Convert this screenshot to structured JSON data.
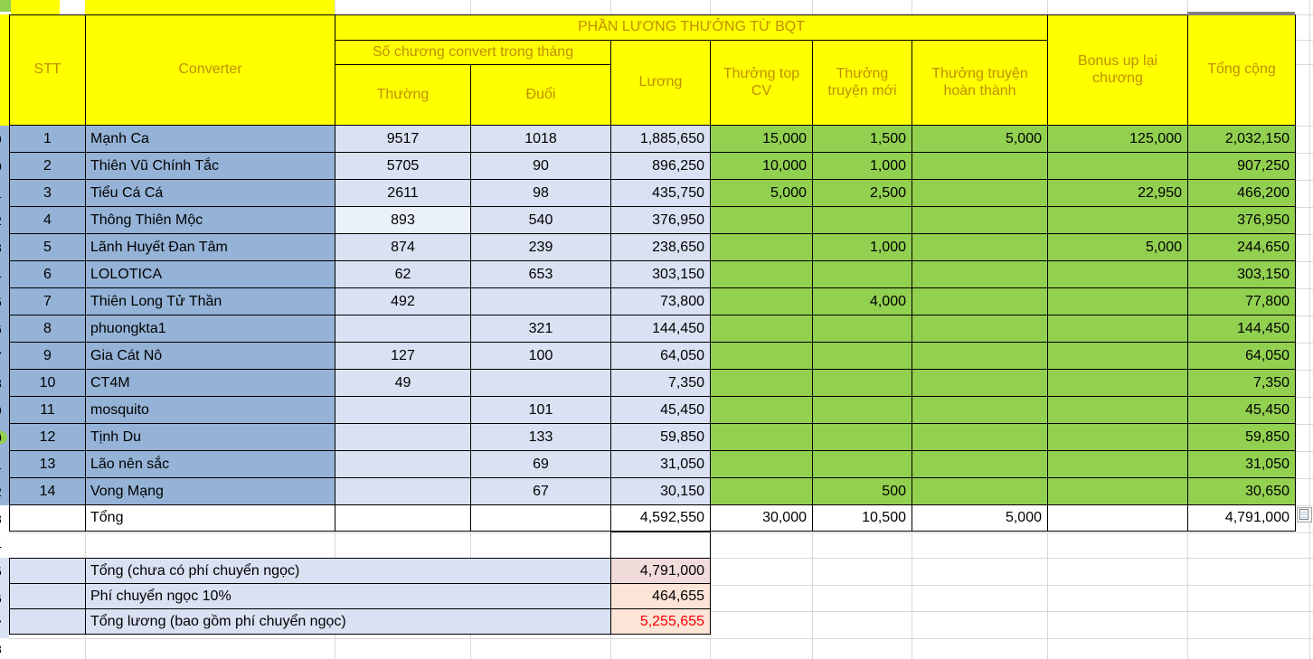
{
  "title": "PHẦN LƯƠNG THƯỞNG TỪ BQT",
  "headers": {
    "stt": "STT",
    "converter": "Converter",
    "chapters_group": "Số chương convert trong tháng",
    "thuong": "Thường",
    "duoi": "Đuổi",
    "luong": "Lương",
    "top_cv": "Thưởng top CV",
    "truyen_moi": "Thưởng truyện mới",
    "hoan_thanh": "Thưởng truyện hoàn thành",
    "bonus_up": "Bonus up lại chương",
    "tong_cong": "Tổng cộng"
  },
  "rows": [
    {
      "stt": "1",
      "converter": "Mạnh Ca",
      "thuong": "9517",
      "duoi": "1018",
      "luong": "1,885,650",
      "top_cv": "15,000",
      "truyen_moi": "1,500",
      "hoan_thanh": "5,000",
      "bonus_up": "125,000",
      "tong_cong": "2,032,150"
    },
    {
      "stt": "2",
      "converter": "Thiên Vũ Chính Tắc",
      "thuong": "5705",
      "duoi": "90",
      "luong": "896,250",
      "top_cv": "10,000",
      "truyen_moi": "1,000",
      "hoan_thanh": "",
      "bonus_up": "",
      "tong_cong": "907,250"
    },
    {
      "stt": "3",
      "converter": "Tiểu Cá Cá",
      "thuong": "2611",
      "duoi": "98",
      "luong": "435,750",
      "top_cv": "5,000",
      "truyen_moi": "2,500",
      "hoan_thanh": "",
      "bonus_up": "22,950",
      "tong_cong": "466,200"
    },
    {
      "stt": "4",
      "converter": "Thông Thiên Mộc",
      "thuong": "893",
      "duoi": "540",
      "luong": "376,950",
      "top_cv": "",
      "truyen_moi": "",
      "hoan_thanh": "",
      "bonus_up": "",
      "tong_cong": "376,950",
      "thuong_variant": true
    },
    {
      "stt": "5",
      "converter": "Lãnh Huyết Đan Tâm",
      "thuong": "874",
      "duoi": "239",
      "luong": "238,650",
      "top_cv": "",
      "truyen_moi": "1,000",
      "hoan_thanh": "",
      "bonus_up": "5,000",
      "tong_cong": "244,650"
    },
    {
      "stt": "6",
      "converter": "LOLOTICA",
      "thuong": "62",
      "duoi": "653",
      "luong": "303,150",
      "top_cv": "",
      "truyen_moi": "",
      "hoan_thanh": "",
      "bonus_up": "",
      "tong_cong": "303,150"
    },
    {
      "stt": "7",
      "converter": "Thiên Long Tử Thần",
      "thuong": "492",
      "duoi": "",
      "luong": "73,800",
      "top_cv": "",
      "truyen_moi": "4,000",
      "hoan_thanh": "",
      "bonus_up": "",
      "tong_cong": "77,800"
    },
    {
      "stt": "8",
      "converter": "phuongkta1",
      "thuong": "",
      "duoi": "321",
      "luong": "144,450",
      "top_cv": "",
      "truyen_moi": "",
      "hoan_thanh": "",
      "bonus_up": "",
      "tong_cong": "144,450"
    },
    {
      "stt": "9",
      "converter": "Gia Cát Nô",
      "thuong": "127",
      "duoi": "100",
      "luong": "64,050",
      "top_cv": "",
      "truyen_moi": "",
      "hoan_thanh": "",
      "bonus_up": "",
      "tong_cong": "64,050"
    },
    {
      "stt": "10",
      "converter": "CT4M",
      "thuong": "49",
      "duoi": "",
      "luong": "7,350",
      "top_cv": "",
      "truyen_moi": "",
      "hoan_thanh": "",
      "bonus_up": "",
      "tong_cong": "7,350"
    },
    {
      "stt": "11",
      "converter": "mosquito",
      "thuong": "",
      "duoi": "101",
      "luong": "45,450",
      "top_cv": "",
      "truyen_moi": "",
      "hoan_thanh": "",
      "bonus_up": "",
      "tong_cong": "45,450"
    },
    {
      "stt": "12",
      "converter": "Tịnh Du",
      "thuong": "",
      "duoi": "133",
      "luong": "59,850",
      "top_cv": "",
      "truyen_moi": "",
      "hoan_thanh": "",
      "bonus_up": "",
      "tong_cong": "59,850"
    },
    {
      "stt": "13",
      "converter": "Lão nên sắc",
      "thuong": "",
      "duoi": "69",
      "luong": "31,050",
      "top_cv": "",
      "truyen_moi": "",
      "hoan_thanh": "",
      "bonus_up": "",
      "tong_cong": "31,050"
    },
    {
      "stt": "14",
      "converter": "Vong Mạng",
      "thuong": "",
      "duoi": "67",
      "luong": "30,150",
      "top_cv": "",
      "truyen_moi": "500",
      "hoan_thanh": "",
      "bonus_up": "",
      "tong_cong": "30,650"
    }
  ],
  "total_row": {
    "label": "Tổng",
    "luong": "4,592,550",
    "top_cv": "30,000",
    "truyen_moi": "10,500",
    "hoan_thanh": "5,000",
    "bonus_up": "",
    "tong_cong": "4,791,000"
  },
  "summary": [
    {
      "label": "Tổng (chưa có phí chuyển ngọc)",
      "value": "4,791,000"
    },
    {
      "label": "Phí chuyển ngọc 10%",
      "value": "464,655"
    },
    {
      "label": "Tổng lương (bao gồm phí chuyển ngọc)",
      "value": "5,255,655"
    }
  ],
  "left_margin": {
    "row_number_fragments": [
      "9",
      "0",
      "1",
      "2",
      "3",
      "4",
      "5",
      "6",
      "7",
      "8",
      "9",
      "0",
      "1",
      "2",
      "3",
      "4",
      "5",
      "6",
      "7",
      "8"
    ]
  },
  "colors": {
    "header_yellow": "#FFFF00",
    "header_text": "#BF8F00",
    "gray_header": "#808080",
    "row_blue": "#95B3D7",
    "row_lavender": "#D9E1F2",
    "bonus_green": "#92D050",
    "summary_pink": "#F2DCDB",
    "summary_peach": "#FCE4D6",
    "grand_total_red": "#FF0000"
  }
}
